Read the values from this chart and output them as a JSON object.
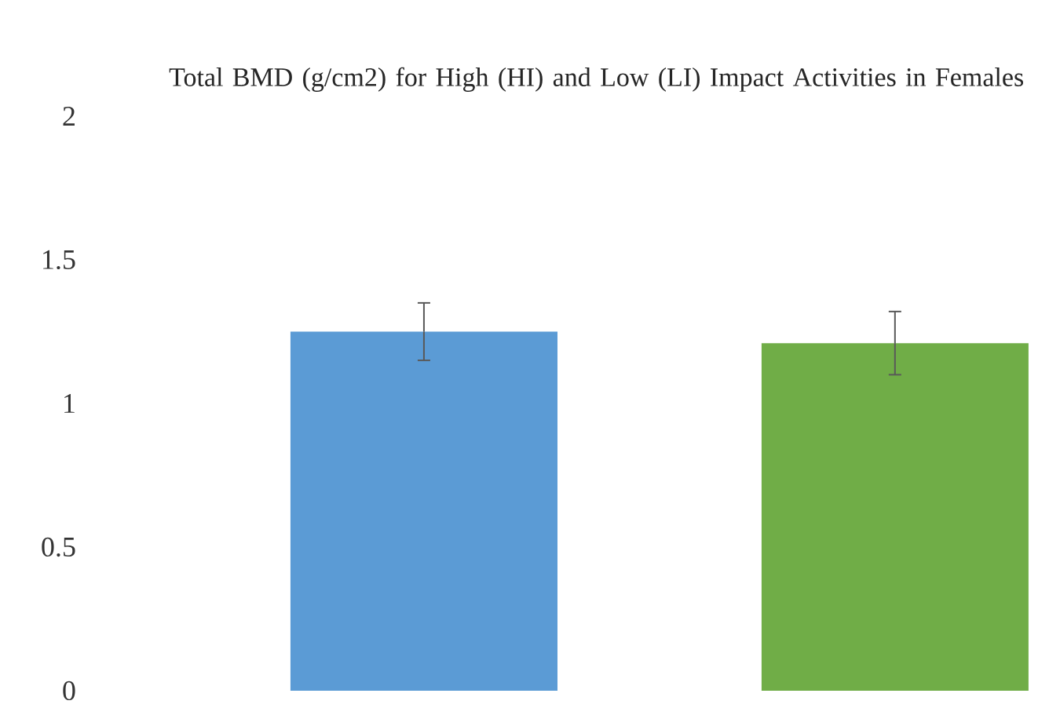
{
  "chart_data": {
    "type": "bar",
    "title": "Total BMD (g/cm2) for High (HI) and Low (LI) Impact Activities in Females",
    "categories": [
      null,
      null
    ],
    "colors": [
      "#5b9bd5",
      "#70ad47"
    ],
    "values": [
      1.25,
      1.21
    ],
    "errors": [
      0.1,
      0.11
    ],
    "ylim": [
      0,
      2
    ],
    "yticks": [
      0,
      0.5,
      1,
      1.5,
      2
    ],
    "grid": false
  }
}
